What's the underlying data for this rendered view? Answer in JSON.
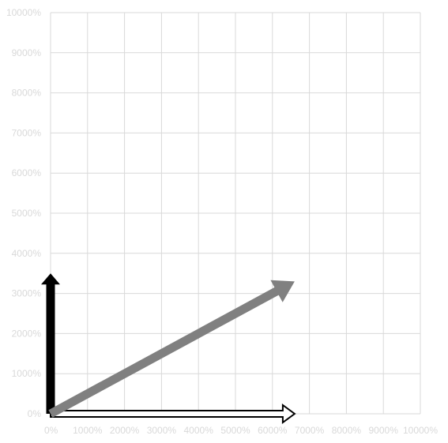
{
  "chart_data": {
    "type": "vector",
    "title": "",
    "xlabel": "",
    "ylabel": "",
    "xlim": [
      0,
      10000
    ],
    "ylim": [
      0,
      10000
    ],
    "unit": "%",
    "grid": true,
    "x_ticks": [
      "0%",
      "1000%",
      "2000%",
      "3000%",
      "4000%",
      "5000%",
      "6000%",
      "7000%",
      "8000%",
      "9000%",
      "10000%"
    ],
    "y_ticks": [
      "0%",
      "1000%",
      "2000%",
      "3000%",
      "4000%",
      "5000%",
      "6000%",
      "7000%",
      "8000%",
      "9000%",
      "10000%"
    ],
    "vectors": [
      {
        "from": [
          0,
          0
        ],
        "to": [
          6600,
          0
        ],
        "style": "outline",
        "color": "#000000"
      },
      {
        "from": [
          0,
          0
        ],
        "to": [
          0,
          3500
        ],
        "style": "solid",
        "color": "#000000"
      },
      {
        "from": [
          0,
          0
        ],
        "to": [
          6600,
          3300
        ],
        "style": "solid",
        "color": "#808080"
      }
    ]
  }
}
